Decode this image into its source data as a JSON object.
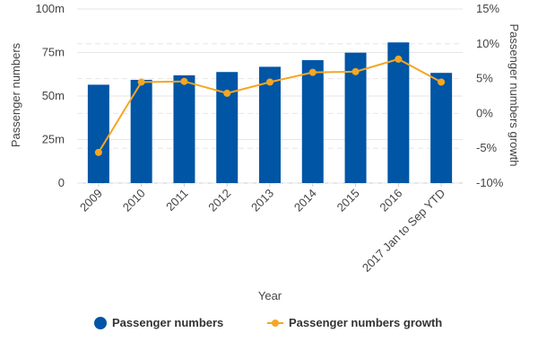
{
  "chart_data": {
    "type": "bar",
    "categories": [
      "2009",
      "2010",
      "2011",
      "2012",
      "2013",
      "2014",
      "2015",
      "2016",
      "2017 Jan to Sep YTD"
    ],
    "series": [
      {
        "name": "Passenger numbers",
        "type": "bar",
        "axis": "left",
        "color": "#0055a5",
        "values": [
          56.5,
          59.3,
          61.9,
          63.8,
          66.8,
          70.6,
          74.9,
          80.8,
          63.3
        ]
      },
      {
        "name": "Passenger numbers growth",
        "type": "line",
        "axis": "right",
        "color": "#f5a623",
        "values": [
          -5.6,
          4.5,
          4.6,
          2.9,
          4.5,
          5.9,
          6.0,
          7.8,
          4.5
        ]
      }
    ],
    "xlabel": "Year",
    "ylabel": "Passenger numbers",
    "y2label": "Passenger numbers growth",
    "ylim": [
      0,
      100
    ],
    "y2lim": [
      -10,
      15
    ],
    "yticks": [
      "0",
      "25m",
      "50m",
      "75m",
      "100m"
    ],
    "y2ticks": [
      "-10%",
      "-5%",
      "0%",
      "5%",
      "10%",
      "15%"
    ],
    "grid": true,
    "legend_position": "bottom"
  },
  "legend": {
    "bar_label": "Passenger numbers",
    "line_label": "Passenger numbers growth"
  }
}
